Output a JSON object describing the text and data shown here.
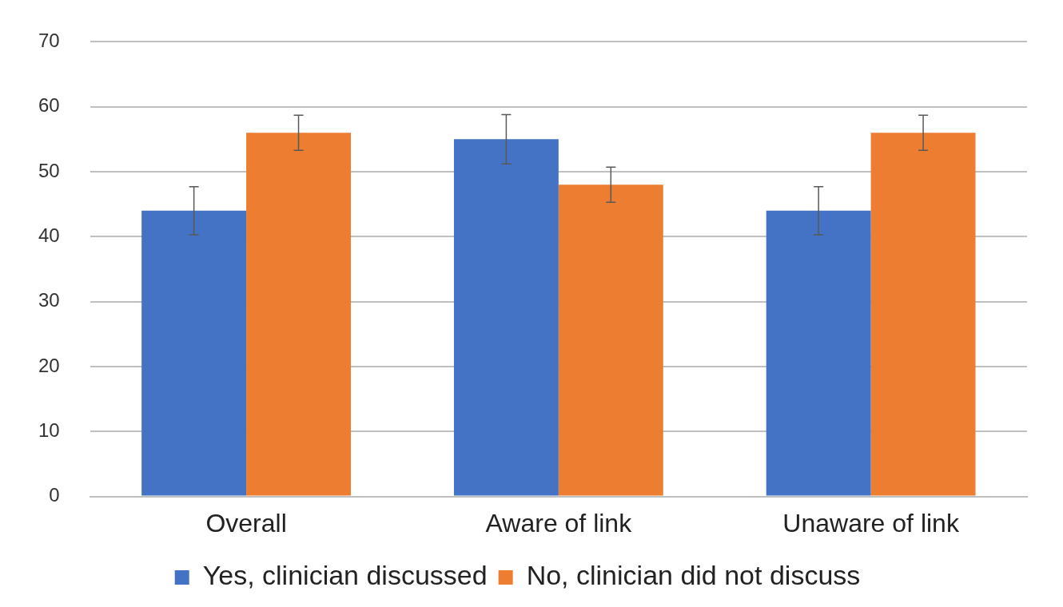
{
  "chart_data": {
    "type": "bar",
    "categories": [
      "Overall",
      "Aware of link",
      "Unaware of link"
    ],
    "series": [
      {
        "name": "Yes, clinician discussed",
        "color": "#4472c4",
        "values": [
          44,
          55,
          44
        ],
        "errors": [
          3.7,
          3.8,
          3.7
        ]
      },
      {
        "name": "No, clinician did not discuss",
        "color": "#ed7d31",
        "values": [
          56,
          48,
          56
        ],
        "errors": [
          2.7,
          2.7,
          2.7
        ]
      }
    ],
    "ylim": [
      0,
      70
    ],
    "yticks": [
      0,
      10,
      20,
      30,
      40,
      50,
      60,
      70
    ],
    "grid": "y",
    "legend": "bottom"
  }
}
